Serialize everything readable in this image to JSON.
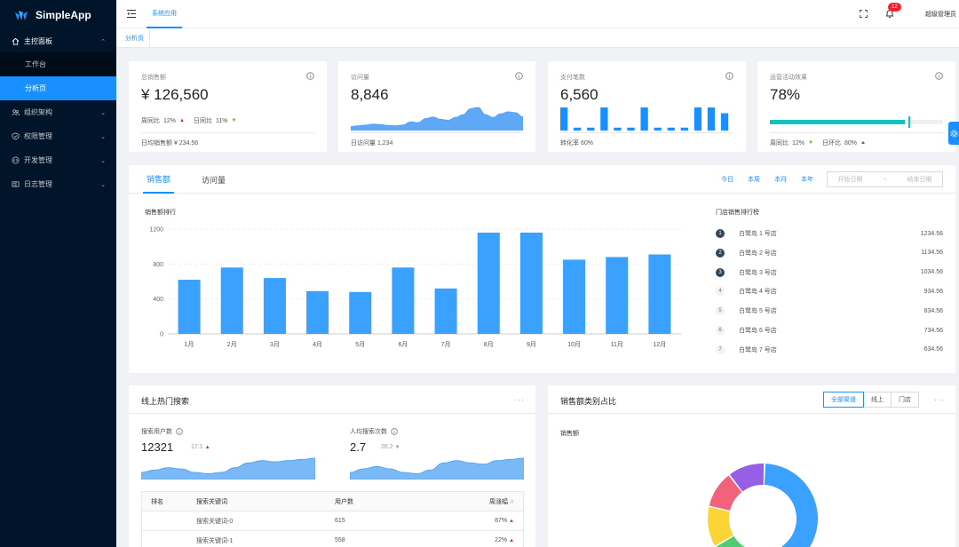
{
  "app": {
    "name": "SimpleApp"
  },
  "sidebar": {
    "dashboard_label": "主控面板",
    "dashboard_items": [
      "工作台",
      "分析页"
    ],
    "groups": [
      "组织架构",
      "权限管理",
      "开发管理",
      "日志管理"
    ]
  },
  "header": {
    "tab_label": "系统应用",
    "badge_count": "12",
    "user": "超级管理员"
  },
  "tags": {
    "active": "分析页"
  },
  "stats": [
    {
      "title": "总销售额",
      "value": "¥ 126,560",
      "wow_label": "周同比",
      "wow": "12%",
      "dod_label": "日同比",
      "dod": "11%",
      "footer": "日均销售额 ¥ 234.56"
    },
    {
      "title": "访问量",
      "value": "8,846",
      "footer": "日访问量 1,234"
    },
    {
      "title": "支付笔数",
      "value": "6,560",
      "footer": "转化率 60%"
    },
    {
      "title": "运营活动效果",
      "value": "78%",
      "progress": 0.78,
      "wow_label": "周同比",
      "wow": "12%",
      "dod_label": "日环比",
      "dod": "80%"
    }
  ],
  "sales": {
    "tabs": [
      "销售额",
      "访问量"
    ],
    "ranges": [
      "今日",
      "本周",
      "本月",
      "本年"
    ],
    "start_placeholder": "开始日期",
    "separator": "~",
    "end_placeholder": "结束日期",
    "chart_title": "销售额排行",
    "ranking_title": "门店销售排行榜",
    "ranking": [
      {
        "rank": "1",
        "name": "白鹭岛 1 号店",
        "value": "1234.56"
      },
      {
        "rank": "2",
        "name": "白鹭岛 2 号店",
        "value": "1134.56"
      },
      {
        "rank": "3",
        "name": "白鹭岛 3 号店",
        "value": "1034.56"
      },
      {
        "rank": "4",
        "name": "白鹭岛 4 号店",
        "value": "934.56"
      },
      {
        "rank": "5",
        "name": "白鹭岛 5 号店",
        "value": "834.56"
      },
      {
        "rank": "6",
        "name": "白鹭岛 6 号店",
        "value": "734.56"
      },
      {
        "rank": "7",
        "name": "白鹭岛 7 号店",
        "value": "634.56"
      }
    ]
  },
  "chart_data": {
    "type": "bar",
    "title": "销售额排行",
    "categories": [
      "1月",
      "2月",
      "3月",
      "4月",
      "5月",
      "6月",
      "7月",
      "8月",
      "9月",
      "10月",
      "11月",
      "12月"
    ],
    "values": [
      620,
      760,
      640,
      490,
      480,
      760,
      520,
      1160,
      1160,
      850,
      880,
      910
    ],
    "ylim": [
      0,
      1200
    ],
    "yticks": [
      0,
      400,
      800,
      1200
    ],
    "color": "#3ba1ff"
  },
  "visits_spark": [
    10,
    12,
    14,
    16,
    15,
    13,
    12,
    14,
    22,
    20,
    30,
    34,
    28,
    26,
    33,
    40,
    55,
    58,
    40,
    33,
    42,
    47,
    45,
    34
  ],
  "payments_bars": [
    40,
    5,
    5,
    40,
    5,
    5,
    40,
    5,
    5,
    5,
    40,
    40,
    30
  ],
  "search": {
    "title": "线上热门搜索",
    "users_label": "搜索用户数",
    "users_value": "12321",
    "users_change": "17.1",
    "per_user_label": "人均搜索次数",
    "per_user_value": "2.7",
    "per_user_change": "26.2",
    "columns": [
      "排名",
      "搜索关键词",
      "用户数",
      "周涨幅"
    ],
    "rows": [
      {
        "keyword": "搜索关键词-0",
        "users": "615",
        "change": "87%"
      },
      {
        "keyword": "搜索关键词-1",
        "users": "558",
        "change": "22%"
      }
    ]
  },
  "category": {
    "title": "销售额类别占比",
    "filters": [
      "全部渠道",
      "线上",
      "门店"
    ],
    "subtitle": "销售额",
    "slices": [
      {
        "value": 40,
        "color": "#3ba1ff"
      },
      {
        "value": 6,
        "color": "#36cbcb"
      },
      {
        "value": 20,
        "color": "#4ecb73"
      },
      {
        "value": 12,
        "color": "#fbd437"
      },
      {
        "value": 11,
        "color": "#f2637b"
      },
      {
        "value": 11,
        "color": "#975fe5"
      }
    ]
  }
}
